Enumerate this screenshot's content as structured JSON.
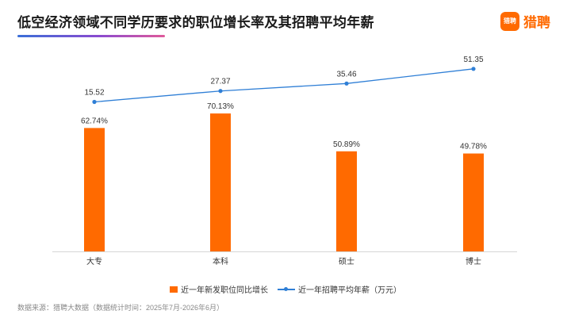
{
  "header": {
    "title": "低空经济领域不同学历要求的职位增长率及其招聘平均年薪",
    "logo_mark": "猎聘",
    "logo_text": "猎聘"
  },
  "colors": {
    "bar": "#ff6a00",
    "line": "#2f7fd6",
    "brand": "#ff6a00"
  },
  "chart_data": {
    "type": "bar",
    "categories": [
      "大专",
      "本科",
      "硕士",
      "博士"
    ],
    "series": [
      {
        "name": "近一年新发职位同比增长",
        "type": "bar",
        "values": [
          62.74,
          70.13,
          50.89,
          49.78
        ],
        "labels": [
          "62.74%",
          "70.13%",
          "50.89%",
          "49.78%"
        ]
      },
      {
        "name": "近一年招聘平均年薪（万元）",
        "type": "line",
        "values": [
          15.52,
          27.37,
          35.46,
          51.35
        ],
        "labels": [
          "15.52",
          "27.37",
          "35.46",
          "51.35"
        ]
      }
    ],
    "legend_position": "bottom",
    "grid": false
  },
  "footer": {
    "source": "数据来源：猎聘大数据（数据统计时间：2025年7月-2026年6月）"
  }
}
